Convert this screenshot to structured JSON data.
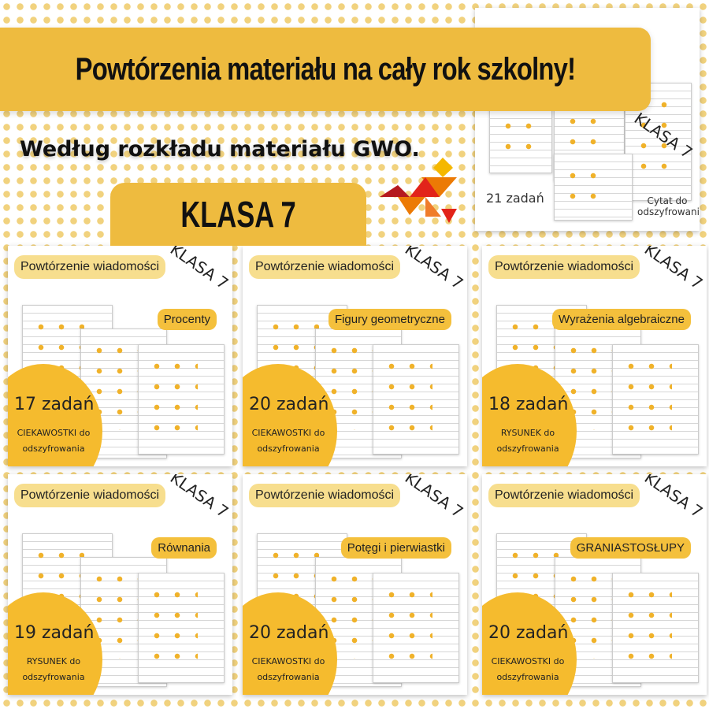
{
  "header": {
    "title": "Powtórzenia materiału na cały rok szkolny!",
    "subtitle": "Według rozkładu materiału GWO.",
    "grade": "KLASA 7"
  },
  "logo": {
    "brand": "GWO",
    "colors": [
      "#f5b800",
      "#ec7a05",
      "#e2231a",
      "#b5191f"
    ]
  },
  "featured": {
    "grade": "KLASA 7",
    "count": "21 zadań",
    "note": "Cytat do odszyfrowania"
  },
  "cards": [
    {
      "label": "Powtórzenie wiadomości",
      "topic": "Procenty",
      "grade": "KLASA 7",
      "count": "17 zadań",
      "note": "CIEKAWOSTKI do odszyfrowania"
    },
    {
      "label": "Powtórzenie wiadomości",
      "topic": "Figury geometryczne",
      "grade": "KLASA 7",
      "count": "20 zadań",
      "note": "CIEKAWOSTKI do odszyfrowania"
    },
    {
      "label": "Powtórzenie wiadomości",
      "topic": "Wyrażenia algebraiczne",
      "grade": "KLASA 7",
      "count": "18 zadań",
      "note": "RYSUNEK do odszyfrowania"
    },
    {
      "label": "Powtórzenie wiadomości",
      "topic": "Równania",
      "grade": "KLASA 7",
      "count": "19 zadań",
      "note": "RYSUNEK do odszyfrowania"
    },
    {
      "label": "Powtórzenie wiadomości",
      "topic": "Potęgi i pierwiastki",
      "grade": "KLASA 7",
      "count": "20 zadań",
      "note": "CIEKAWOSTKI do odszyfrowania"
    },
    {
      "label": "Powtórzenie wiadomości",
      "topic": "GRANIASTOSŁUPY",
      "grade": "KLASA 7",
      "count": "20 zadań",
      "note": "CIEKAWOSTKI do odszyfrowania"
    }
  ],
  "accent": "#eebb3f"
}
